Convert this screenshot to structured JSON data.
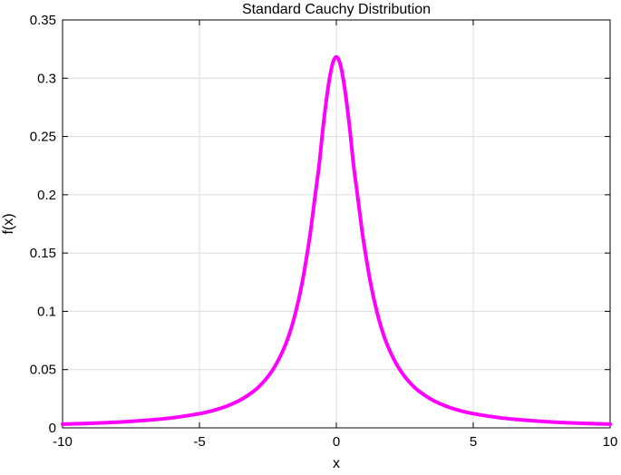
{
  "chart_data": {
    "type": "line",
    "title": "Standard Cauchy Distribution",
    "xlabel": "x",
    "ylabel": "f(x)",
    "xlim": [
      -10,
      10
    ],
    "ylim": [
      0,
      0.35
    ],
    "xticks": [
      -10,
      -5,
      0,
      5,
      10
    ],
    "xtick_labels": [
      "-10",
      "-5",
      "0",
      "5",
      "10"
    ],
    "yticks": [
      0,
      0.05,
      0.1,
      0.15,
      0.2,
      0.25,
      0.3,
      0.35
    ],
    "ytick_labels": [
      "0",
      "0.05",
      "0.1",
      "0.15",
      "0.2",
      "0.25",
      "0.3",
      "0.35"
    ],
    "grid": true,
    "series": [
      {
        "color": "#ff00ff",
        "x": [
          -10,
          -9,
          -8,
          -7,
          -6,
          -5,
          -4.5,
          -4,
          -3.5,
          -3,
          -2.75,
          -2.5,
          -2.25,
          -2,
          -1.75,
          -1.5,
          -1.25,
          -1,
          -0.875,
          -0.75,
          -0.625,
          -0.5,
          -0.375,
          -0.25,
          -0.125,
          0,
          0.125,
          0.25,
          0.375,
          0.5,
          0.625,
          0.75,
          0.875,
          1,
          1.25,
          1.5,
          1.75,
          2,
          2.25,
          2.5,
          2.75,
          3,
          3.5,
          4,
          4.5,
          5,
          6,
          7,
          8,
          9,
          10
        ],
        "y": [
          0.0032,
          0.0039,
          0.0049,
          0.0064,
          0.0086,
          0.0122,
          0.0149,
          0.0187,
          0.024,
          0.0318,
          0.0372,
          0.0439,
          0.0525,
          0.0637,
          0.0781,
          0.0979,
          0.1242,
          0.1592,
          0.1807,
          0.2037,
          0.2262,
          0.2546,
          0.2794,
          0.2996,
          0.3135,
          0.3183,
          0.3135,
          0.2996,
          0.2794,
          0.2546,
          0.2262,
          0.2037,
          0.1807,
          0.1592,
          0.1242,
          0.0979,
          0.0781,
          0.0637,
          0.0525,
          0.0439,
          0.0372,
          0.0318,
          0.024,
          0.0187,
          0.0149,
          0.0122,
          0.0086,
          0.0064,
          0.0049,
          0.0039,
          0.0032
        ]
      }
    ]
  }
}
